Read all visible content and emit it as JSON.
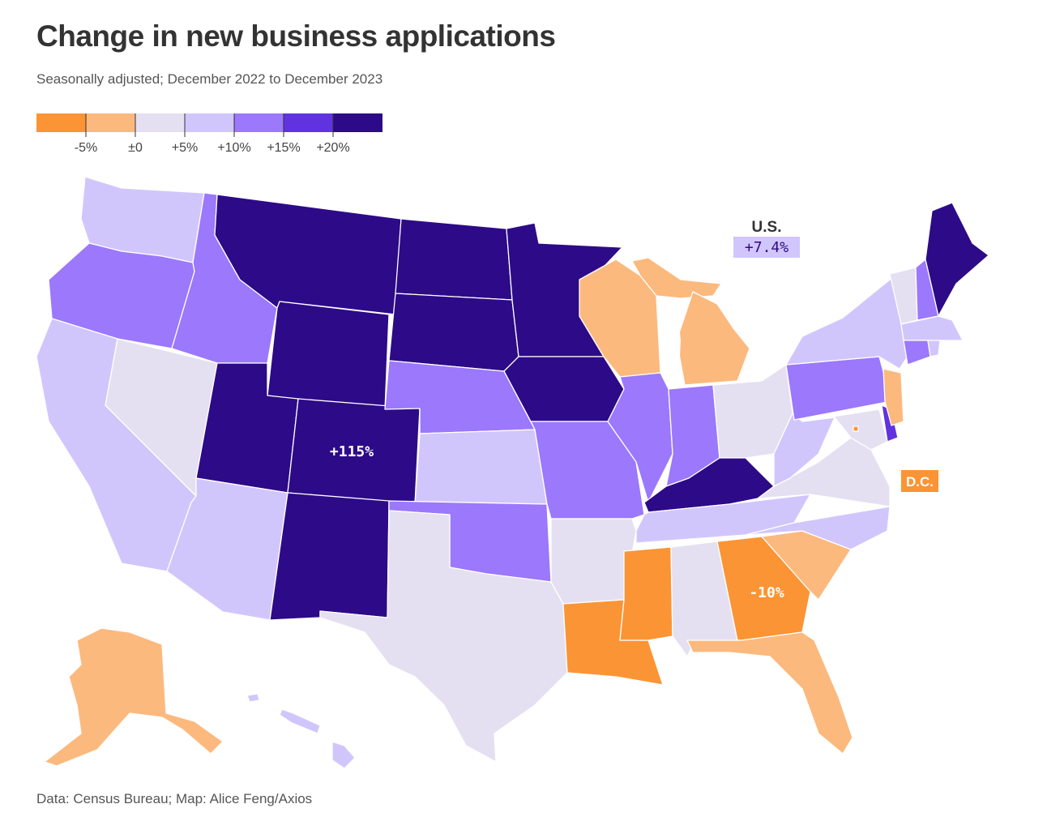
{
  "title": "Change in new business applications",
  "subtitle": "Seasonally adjusted; December 2022 to December 2023",
  "source": "Data: Census Bureau; Map: Alice Feng/Axios",
  "legend": {
    "colors": [
      "#fb9434",
      "#fcb97d",
      "#e4e0f1",
      "#d1c6fc",
      "#9b78fc",
      "#6132e0",
      "#2d0a87"
    ],
    "labels": [
      "-5%",
      "±0",
      "+5%",
      "+10%",
      "+15%",
      "+20%"
    ]
  },
  "us": {
    "label": "U.S.",
    "value": "+7.4%"
  },
  "dc": {
    "label": "D.C."
  },
  "callouts": {
    "colorado": "+115%",
    "georgia": "-10%"
  },
  "colors": {
    "neg_big": "#fb9434",
    "neg": "#fcb97d",
    "zero_five": "#e4e0f1",
    "five_ten": "#d1c6fc",
    "ten_fifteen": "#9b78fc",
    "fifteen_twenty": "#6132e0",
    "twenty_plus": "#2d0a87"
  }
}
